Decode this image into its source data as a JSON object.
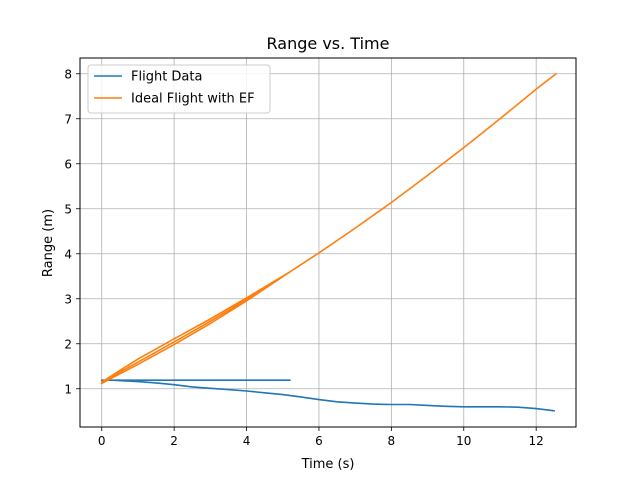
{
  "chart_data": {
    "type": "line",
    "title": "Range vs. Time",
    "xlabel": "Time (s)",
    "ylabel": "Range (m)",
    "xlim": [
      -0.6,
      13.1
    ],
    "ylim": [
      0.15,
      8.35
    ],
    "xticks": [
      0,
      2,
      4,
      6,
      8,
      10,
      12
    ],
    "yticks": [
      1,
      2,
      3,
      4,
      5,
      6,
      7,
      8
    ],
    "grid": true,
    "legend_position": "top-left",
    "series": [
      {
        "name": "Flight Data",
        "color": "#1f77b4",
        "x": [
          5.2,
          0.0,
          0.3,
          1.0,
          1.5,
          2.0,
          2.5,
          3.0,
          3.5,
          4.0,
          4.5,
          5.0,
          5.5,
          6.0,
          6.5,
          7.0,
          7.5,
          8.0,
          8.5,
          9.0,
          9.5,
          10.0,
          10.5,
          11.0,
          11.5,
          12.0,
          12.5
        ],
        "y": [
          1.19,
          1.19,
          1.19,
          1.16,
          1.13,
          1.09,
          1.04,
          1.01,
          0.98,
          0.95,
          0.91,
          0.87,
          0.82,
          0.76,
          0.71,
          0.68,
          0.66,
          0.65,
          0.65,
          0.63,
          0.61,
          0.6,
          0.6,
          0.6,
          0.59,
          0.56,
          0.51
        ]
      },
      {
        "name": "Ideal Flight with EF",
        "color": "#ff7f0e",
        "x": [
          0.0,
          1.0,
          2.0,
          3.0,
          4.0,
          5.2,
          4.0,
          3.0,
          2.0,
          1.0,
          0.0,
          0.0,
          1.0,
          2.0,
          3.0,
          4.0,
          5.2,
          6.0,
          7.0,
          8.0,
          9.0,
          10.0,
          11.0,
          12.0,
          12.55
        ],
        "y": [
          1.15,
          1.59,
          2.04,
          2.5,
          2.98,
          3.6,
          3.02,
          2.55,
          2.11,
          1.66,
          1.15,
          1.12,
          1.54,
          1.98,
          2.45,
          2.95,
          3.6,
          4.02,
          4.57,
          5.14,
          5.74,
          6.36,
          7.0,
          7.66,
          8.0
        ]
      }
    ]
  }
}
